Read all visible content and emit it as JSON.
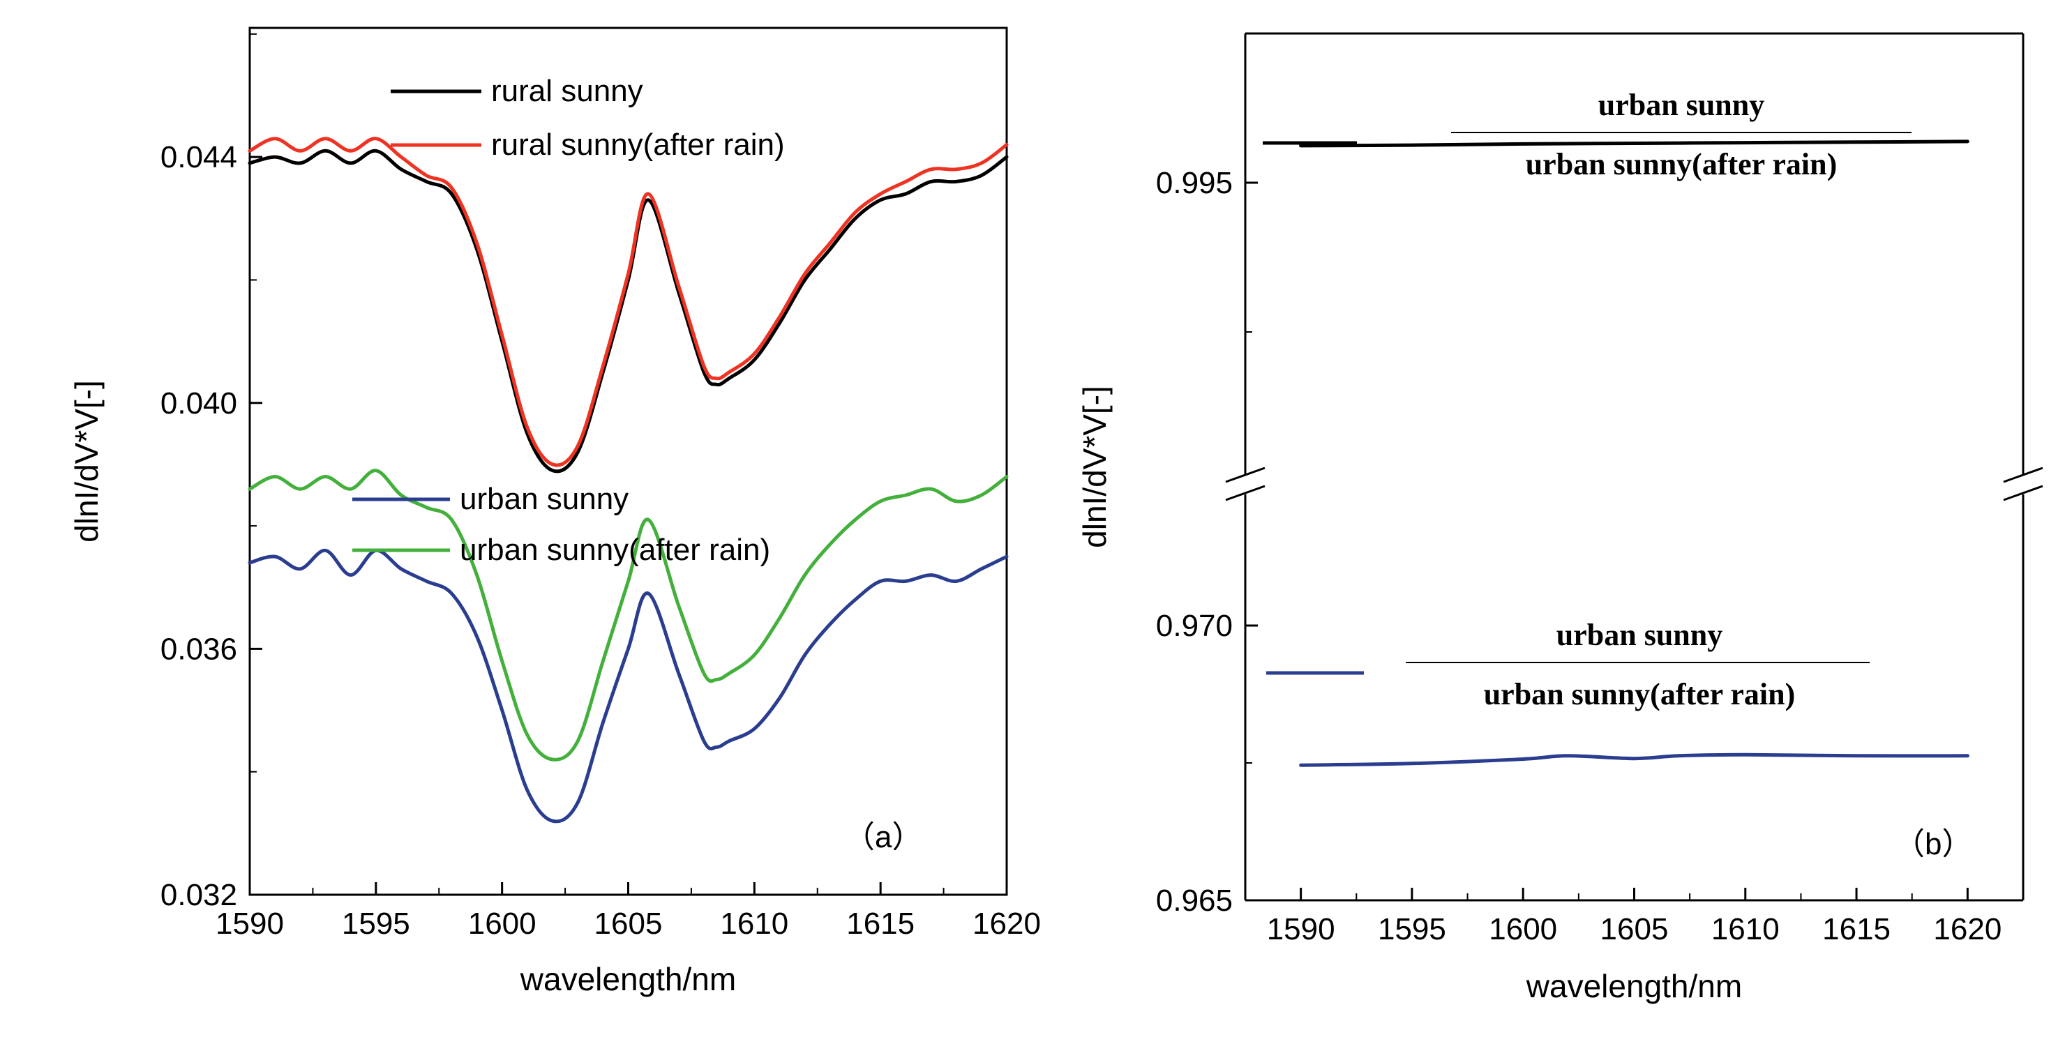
{
  "chart_data": [
    {
      "panel": "a",
      "type": "line",
      "panel_label": "（a）",
      "xlabel": "wavelength/nm",
      "ylabel": "dlnI/dV*V[-]",
      "xlim": [
        1590,
        1620
      ],
      "ylim": [
        0.032,
        0.0461
      ],
      "xticks": [
        1590,
        1595,
        1600,
        1605,
        1610,
        1615,
        1620
      ],
      "yticks": [
        0.032,
        0.036,
        0.04,
        0.044
      ],
      "ytick_labels": [
        "0.032",
        "0.036",
        "0.040",
        "0.044"
      ],
      "series": [
        {
          "name": "rural sunny",
          "color": "#000000",
          "x": [
            1590,
            1591,
            1592,
            1593,
            1594,
            1595,
            1596,
            1597,
            1598,
            1599,
            1600,
            1601,
            1602,
            1603,
            1604,
            1605,
            1605.8,
            1607,
            1608,
            1608.5,
            1609,
            1610,
            1611,
            1612,
            1613,
            1614,
            1615,
            1616,
            1617,
            1618,
            1619,
            1620
          ],
          "y": [
            0.0439,
            0.044,
            0.0439,
            0.0441,
            0.0439,
            0.0441,
            0.0438,
            0.0436,
            0.0434,
            0.0425,
            0.041,
            0.0395,
            0.0389,
            0.0392,
            0.0405,
            0.042,
            0.0433,
            0.0418,
            0.0405,
            0.0403,
            0.0404,
            0.0407,
            0.0413,
            0.042,
            0.0425,
            0.043,
            0.0433,
            0.0434,
            0.0436,
            0.0436,
            0.0437,
            0.044
          ]
        },
        {
          "name": "rural  sunny(after rain)",
          "color": "#ee3322",
          "x": [
            1590,
            1591,
            1592,
            1593,
            1594,
            1595,
            1596,
            1597,
            1598,
            1599,
            1600,
            1601,
            1602,
            1603,
            1604,
            1605,
            1605.8,
            1607,
            1608,
            1608.5,
            1609,
            1610,
            1611,
            1612,
            1613,
            1614,
            1615,
            1616,
            1617,
            1618,
            1619,
            1620
          ],
          "y": [
            0.0441,
            0.0443,
            0.0441,
            0.0443,
            0.0441,
            0.0443,
            0.044,
            0.0437,
            0.0435,
            0.0426,
            0.0411,
            0.0396,
            0.039,
            0.0393,
            0.0406,
            0.0421,
            0.0434,
            0.0419,
            0.0406,
            0.0404,
            0.0405,
            0.0408,
            0.0414,
            0.0421,
            0.0426,
            0.0431,
            0.0434,
            0.0436,
            0.0438,
            0.0438,
            0.0439,
            0.0442
          ]
        },
        {
          "name": "urban sunny",
          "color": "#2a3d8f",
          "x": [
            1590,
            1591,
            1592,
            1593,
            1594,
            1595,
            1596,
            1597,
            1598,
            1599,
            1600,
            1601,
            1602,
            1603,
            1604,
            1605,
            1605.8,
            1607,
            1608,
            1608.5,
            1609,
            1610,
            1611,
            1612,
            1613,
            1614,
            1615,
            1616,
            1617,
            1618,
            1619,
            1620
          ],
          "y": [
            0.0374,
            0.0375,
            0.0373,
            0.0376,
            0.0372,
            0.0376,
            0.0373,
            0.0371,
            0.0369,
            0.0362,
            0.035,
            0.0337,
            0.0332,
            0.0335,
            0.0348,
            0.036,
            0.0369,
            0.0356,
            0.0345,
            0.0344,
            0.0345,
            0.0347,
            0.0352,
            0.0359,
            0.0364,
            0.0368,
            0.0371,
            0.0371,
            0.0372,
            0.0371,
            0.0373,
            0.0375
          ]
        },
        {
          "name": "urban sunny(after rain)",
          "color": "#44b03c",
          "x": [
            1590,
            1591,
            1592,
            1593,
            1594,
            1595,
            1596,
            1597,
            1598,
            1599,
            1600,
            1601,
            1602,
            1603,
            1604,
            1605,
            1605.8,
            1607,
            1608,
            1608.5,
            1609,
            1610,
            1611,
            1612,
            1613,
            1614,
            1615,
            1616,
            1617,
            1618,
            1619,
            1620
          ],
          "y": [
            0.0386,
            0.0388,
            0.0386,
            0.0388,
            0.0386,
            0.0389,
            0.0385,
            0.0383,
            0.0381,
            0.0372,
            0.0358,
            0.0346,
            0.0342,
            0.0345,
            0.0358,
            0.0371,
            0.0381,
            0.0367,
            0.0356,
            0.0355,
            0.0356,
            0.0359,
            0.0365,
            0.0372,
            0.0377,
            0.0381,
            0.0384,
            0.0385,
            0.0386,
            0.0384,
            0.0385,
            0.0388
          ]
        }
      ]
    },
    {
      "panel": "b",
      "type": "line",
      "panel_label": "（b）",
      "xlabel": "wavelength/nm",
      "ylabel": "dlnI/dV*V[-]",
      "xlim": [
        1587.5,
        1622.5
      ],
      "axis_break": true,
      "upper_ylim": [
        0.99,
        0.9975
      ],
      "lower_ylim": [
        0.965,
        0.9725
      ],
      "xticks": [
        1590,
        1595,
        1600,
        1605,
        1610,
        1615,
        1620
      ],
      "yticks": [
        0.965,
        0.97,
        0.995
      ],
      "ytick_labels": [
        "0.965",
        "0.970",
        "0.995"
      ],
      "series": [
        {
          "name": "urban sunny / urban sunny(after rain)",
          "color": "#000000",
          "numerator": "urban sunny",
          "denominator": "urban sunny(after rain)",
          "x": [
            1590,
            1595,
            1600,
            1605,
            1610,
            1615,
            1620
          ],
          "y": [
            0.99562,
            0.99563,
            0.99565,
            0.99566,
            0.99567,
            0.99568,
            0.99569
          ]
        },
        {
          "name": "urban sunny / urban sunny(after rain)",
          "color": "#2a3d8f",
          "numerator": "urban sunny",
          "denominator": "urban sunny(after rain)",
          "x": [
            1590,
            1595,
            1600,
            1602,
            1605,
            1607,
            1610,
            1615,
            1620
          ],
          "y": [
            0.96746,
            0.96749,
            0.96757,
            0.96763,
            0.96758,
            0.96763,
            0.96765,
            0.96763,
            0.96763
          ]
        }
      ]
    }
  ]
}
